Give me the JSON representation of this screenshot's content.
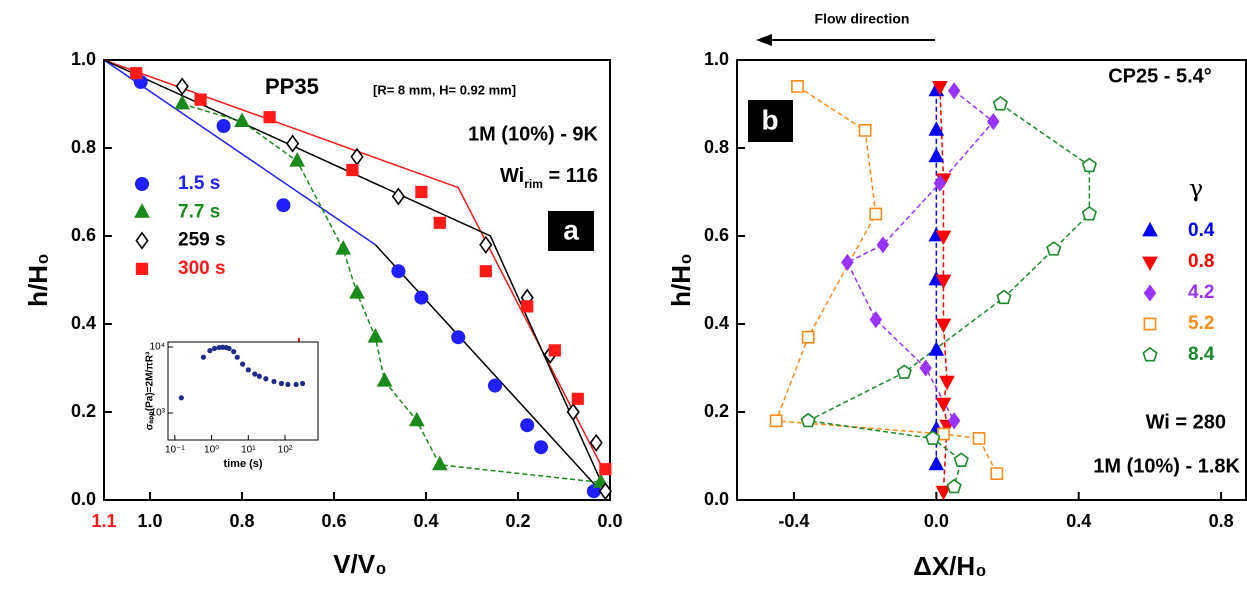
{
  "chart_data": [
    {
      "type": "scatter",
      "panel_label": "a",
      "xlabel": "V/V₀",
      "ylabel": "h/H₀",
      "xlim": [
        1.1,
        0.0
      ],
      "ylim": [
        0,
        1
      ],
      "xticks": [
        1.1,
        {
          "value": 1,
          "label": "1.0"
        },
        0.8,
        0.6,
        0.4,
        0.2,
        {
          "value": 0,
          "label": "0.0"
        }
      ],
      "yticks": [
        {
          "value": 0,
          "label": "0.0"
        },
        0.2,
        0.4,
        0.6,
        0.8,
        {
          "value": 1,
          "label": "1.0"
        }
      ],
      "annotations": [
        "PP35",
        "[R= 8 mm, H= 0.92 mm]",
        "1M (10%) - 9K"
      ],
      "wi_label": {
        "main": "Wi",
        "sub": "rim",
        "rest": " = 116"
      },
      "series": [
        {
          "name": "1.5 s",
          "color": "#1f1fff",
          "marker": "circle",
          "filled": true,
          "x": [
            1.02,
            0.84,
            0.71,
            0.46,
            0.41,
            0.33,
            0.25,
            0.18,
            0.15,
            0.035
          ],
          "values": [
            0.95,
            0.85,
            0.67,
            0.52,
            0.46,
            0.37,
            0.26,
            0.17,
            0.12,
            0.02
          ]
        },
        {
          "name": "7.7 s",
          "color": "#1a8a1a",
          "marker": "triangle-up",
          "filled": true,
          "line": "dashed",
          "x": [
            0.93,
            0.8,
            0.68,
            0.58,
            0.55,
            0.51,
            0.49,
            0.42,
            0.37,
            0.02
          ],
          "values": [
            0.9,
            0.86,
            0.77,
            0.57,
            0.47,
            0.37,
            0.27,
            0.18,
            0.08,
            0.04
          ]
        },
        {
          "name": "259 s",
          "color": "#000000",
          "marker": "diamond",
          "filled": false,
          "x": [
            0.93,
            0.69,
            0.55,
            0.46,
            0.27,
            0.18,
            0.13,
            0.08,
            0.03,
            0.01
          ],
          "values": [
            0.94,
            0.81,
            0.78,
            0.69,
            0.58,
            0.46,
            0.33,
            0.2,
            0.13,
            0.02
          ]
        },
        {
          "name": "300 s",
          "color": "#ff1a1a",
          "marker": "square",
          "filled": true,
          "x": [
            1.03,
            0.89,
            0.74,
            0.56,
            0.41,
            0.37,
            0.27,
            0.18,
            0.12,
            0.07,
            0.01
          ],
          "values": [
            0.97,
            0.91,
            0.87,
            0.75,
            0.7,
            0.63,
            0.52,
            0.44,
            0.34,
            0.23,
            0.07
          ]
        }
      ],
      "fits": [
        {
          "color": "#1f1fff",
          "x": [
            1.1,
            0.51
          ],
          "values": [
            1.0,
            0.58
          ]
        },
        {
          "color": "#000000",
          "x": [
            0.51,
            0.02
          ],
          "values": [
            0.58,
            0.02
          ]
        },
        {
          "color": "#ff1a1a",
          "x": [
            1.1,
            0.33,
            0.01
          ],
          "values": [
            1.0,
            0.71,
            0.06
          ]
        },
        {
          "color": "#000000",
          "x": [
            1.1,
            0.26,
            0.01
          ],
          "values": [
            1.0,
            0.6,
            0.02
          ]
        }
      ],
      "inset": {
        "type": "scatter",
        "log": true,
        "xlabel": "time (s)",
        "ylabel": "σₐₚₚ(Pa)=2M/πR³",
        "xlim": [
          0.065,
          790
        ],
        "ylim": [
          390,
          11900
        ],
        "xticks": [
          {
            "value": 0.1,
            "label": "10⁻¹"
          },
          {
            "value": 1,
            "label": "10⁰"
          },
          {
            "value": 10,
            "label": "10¹"
          },
          {
            "value": 100,
            "label": "10²"
          }
        ],
        "yticks": [
          {
            "value": 1000,
            "label": "10³"
          },
          {
            "value": 10000,
            "label": "10⁴"
          }
        ],
        "color": "#1f2a8a",
        "x": [
          0.15,
          0.6,
          0.9,
          1.2,
          1.6,
          2,
          2.5,
          3,
          4,
          5,
          7,
          10,
          15,
          20,
          30,
          50,
          80,
          120,
          200,
          300
        ],
        "values": [
          1700,
          7000,
          8800,
          9500,
          9800,
          9900,
          9800,
          9500,
          8500,
          7000,
          5500,
          4500,
          3900,
          3600,
          3300,
          3000,
          2800,
          2700,
          2700,
          2800
        ]
      }
    },
    {
      "type": "scatter",
      "panel_label": "b",
      "xlabel": "ΔX/H₀",
      "ylabel": "h/H₀",
      "xlim": [
        -0.56,
        0.87
      ],
      "ylim": [
        0,
        1
      ],
      "xticks": [
        -0.4,
        {
          "value": 0,
          "label": "0.0"
        },
        0.4,
        0.8
      ],
      "yticks": [
        {
          "value": 0,
          "label": "0.0"
        },
        0.2,
        0.4,
        0.6,
        0.8,
        {
          "value": 1,
          "label": "1.0"
        }
      ],
      "annotations": [
        "Flow direction",
        "CP25 - 5.4°",
        "Wi = 280",
        "1M (10%) - 1.8K"
      ],
      "legend_title": "γ",
      "series": [
        {
          "name": "0.4",
          "color": "#0000ff",
          "marker": "triangle-up",
          "filled": true,
          "line": "dashed",
          "x": [
            0,
            0,
            0,
            0,
            0,
            0,
            0,
            0
          ],
          "values": [
            0.93,
            0.84,
            0.78,
            0.6,
            0.5,
            0.34,
            0.16,
            0.08
          ]
        },
        {
          "name": "0.8",
          "color": "#ff0000",
          "marker": "triangle-down",
          "filled": true,
          "line": "dashed",
          "x": [
            0.01,
            0.02,
            0.02,
            0.02,
            0.02,
            0.03,
            0.02,
            0.03,
            0.02
          ],
          "values": [
            0.94,
            0.73,
            0.6,
            0.5,
            0.4,
            0.27,
            0.22,
            0.17,
            0.02
          ]
        },
        {
          "name": "4.2",
          "color": "#9933ff",
          "marker": "diamond",
          "filled": true,
          "line": "dashed",
          "x": [
            0.05,
            0.16,
            0.01,
            -0.15,
            -0.25,
            -0.17,
            -0.03,
            0.05
          ],
          "values": [
            0.93,
            0.86,
            0.72,
            0.58,
            0.54,
            0.41,
            0.3,
            0.18
          ]
        },
        {
          "name": "5.2",
          "color": "#ff8c1a",
          "marker": "square",
          "filled": false,
          "line": "dashed",
          "x": [
            -0.39,
            -0.2,
            -0.17,
            -0.36,
            -0.45,
            0.02,
            0.12,
            0.17
          ],
          "values": [
            0.94,
            0.84,
            0.65,
            0.37,
            0.18,
            0.15,
            0.14,
            0.06
          ]
        },
        {
          "name": "8.4",
          "color": "#1a8a2a",
          "marker": "pentagon",
          "filled": false,
          "line": "dashed",
          "x": [
            0.18,
            0.43,
            0.43,
            0.33,
            0.19,
            -0.09,
            -0.36,
            -0.01,
            0.07,
            0.05
          ],
          "values": [
            0.9,
            0.76,
            0.65,
            0.57,
            0.46,
            0.29,
            0.18,
            0.14,
            0.09,
            0.03
          ]
        }
      ]
    }
  ]
}
